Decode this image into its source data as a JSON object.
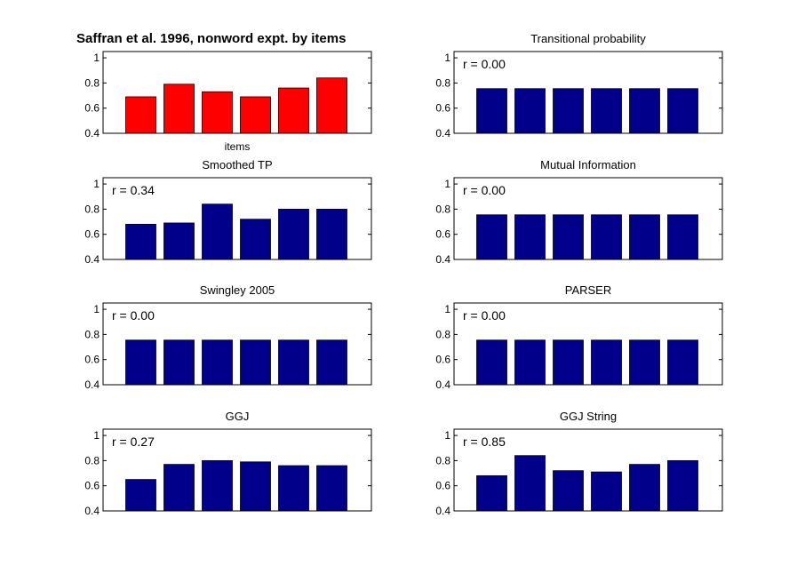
{
  "chart_data": [
    {
      "type": "bar",
      "title": "Saffran et al. 1996, nonword expt. by items",
      "xlabel": "items",
      "ylabel": "",
      "annotation": "",
      "ylim": [
        0.4,
        1.05
      ],
      "yticks": [
        "0.4",
        "0.6",
        "0.8",
        "1"
      ],
      "bar_color": "#ff0000",
      "values": [
        0.69,
        0.79,
        0.73,
        0.69,
        0.76,
        0.84
      ]
    },
    {
      "type": "bar",
      "title": "Transitional probability",
      "xlabel": "",
      "ylabel": "",
      "annotation": "r = 0.00",
      "ylim": [
        0.4,
        1.05
      ],
      "yticks": [
        "0.4",
        "0.6",
        "0.8",
        "1"
      ],
      "bar_color": "#00008b",
      "values": [
        0.755,
        0.755,
        0.755,
        0.755,
        0.755,
        0.755
      ]
    },
    {
      "type": "bar",
      "title": "Smoothed TP",
      "xlabel": "",
      "ylabel": "",
      "annotation": "r = 0.34",
      "ylim": [
        0.4,
        1.05
      ],
      "yticks": [
        "0.4",
        "0.6",
        "0.8",
        "1"
      ],
      "bar_color": "#00008b",
      "values": [
        0.68,
        0.69,
        0.84,
        0.72,
        0.8,
        0.8
      ]
    },
    {
      "type": "bar",
      "title": "Mutual Information",
      "xlabel": "",
      "ylabel": "",
      "annotation": "r = 0.00",
      "ylim": [
        0.4,
        1.05
      ],
      "yticks": [
        "0.4",
        "0.6",
        "0.8",
        "1"
      ],
      "bar_color": "#00008b",
      "values": [
        0.755,
        0.755,
        0.755,
        0.755,
        0.755,
        0.755
      ]
    },
    {
      "type": "bar",
      "title": "Swingley 2005",
      "xlabel": "",
      "ylabel": "",
      "annotation": "r = 0.00",
      "ylim": [
        0.4,
        1.05
      ],
      "yticks": [
        "0.4",
        "0.6",
        "0.8",
        "1"
      ],
      "bar_color": "#00008b",
      "values": [
        0.755,
        0.755,
        0.755,
        0.755,
        0.755,
        0.755
      ]
    },
    {
      "type": "bar",
      "title": "PARSER",
      "xlabel": "",
      "ylabel": "",
      "annotation": "r = 0.00",
      "ylim": [
        0.4,
        1.05
      ],
      "yticks": [
        "0.4",
        "0.6",
        "0.8",
        "1"
      ],
      "bar_color": "#00008b",
      "values": [
        0.755,
        0.755,
        0.755,
        0.755,
        0.755,
        0.755
      ]
    },
    {
      "type": "bar",
      "title": "GGJ",
      "xlabel": "",
      "ylabel": "",
      "annotation": "r = 0.27",
      "ylim": [
        0.4,
        1.05
      ],
      "yticks": [
        "0.4",
        "0.6",
        "0.8",
        "1"
      ],
      "bar_color": "#00008b",
      "values": [
        0.65,
        0.77,
        0.8,
        0.79,
        0.76,
        0.76
      ]
    },
    {
      "type": "bar",
      "title": "GGJ String",
      "xlabel": "",
      "ylabel": "",
      "annotation": "r = 0.85",
      "ylim": [
        0.4,
        1.05
      ],
      "yticks": [
        "0.4",
        "0.6",
        "0.8",
        "1"
      ],
      "bar_color": "#00008b",
      "values": [
        0.68,
        0.84,
        0.72,
        0.71,
        0.77,
        0.8
      ]
    }
  ]
}
